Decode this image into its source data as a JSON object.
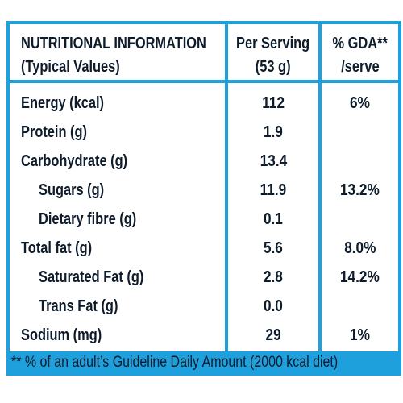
{
  "header": {
    "title_line1": "NUTRITIONAL INFORMATION",
    "title_line2": "(Typical Values)",
    "col_serving_line1": "Per Serving",
    "col_serving_line2": "(53 g)",
    "col_gda_line1": "% GDA**",
    "col_gda_line2": "/serve"
  },
  "rows": [
    {
      "label": "Energy (kcal)",
      "serving": "112",
      "gda": "6%"
    },
    {
      "label": "Protein (g)",
      "serving": "1.9",
      "gda": ""
    },
    {
      "label": "Carbohydrate (g)",
      "serving": "13.4",
      "gda": ""
    },
    {
      "label": "Sugars (g)",
      "serving": "11.9",
      "gda": "13.2%"
    },
    {
      "label": "Dietary fibre (g)",
      "serving": "0.1",
      "gda": ""
    },
    {
      "label": "Total fat (g)",
      "serving": "5.6",
      "gda": "8.0%"
    },
    {
      "label": "Saturated Fat (g)",
      "serving": "2.8",
      "gda": "14.2%"
    },
    {
      "label": "Trans Fat (g)",
      "serving": "0.0",
      "gda": ""
    },
    {
      "label": "Sodium (mg)",
      "serving": "29",
      "gda": "1%"
    }
  ],
  "footer": {
    "note": "** % of an adult’s Guideline Daily Amount (2000 kcal diet)"
  },
  "colors": {
    "accent": "#1ea0dd",
    "text": "#0d1b2a",
    "background": "#ffffff"
  }
}
